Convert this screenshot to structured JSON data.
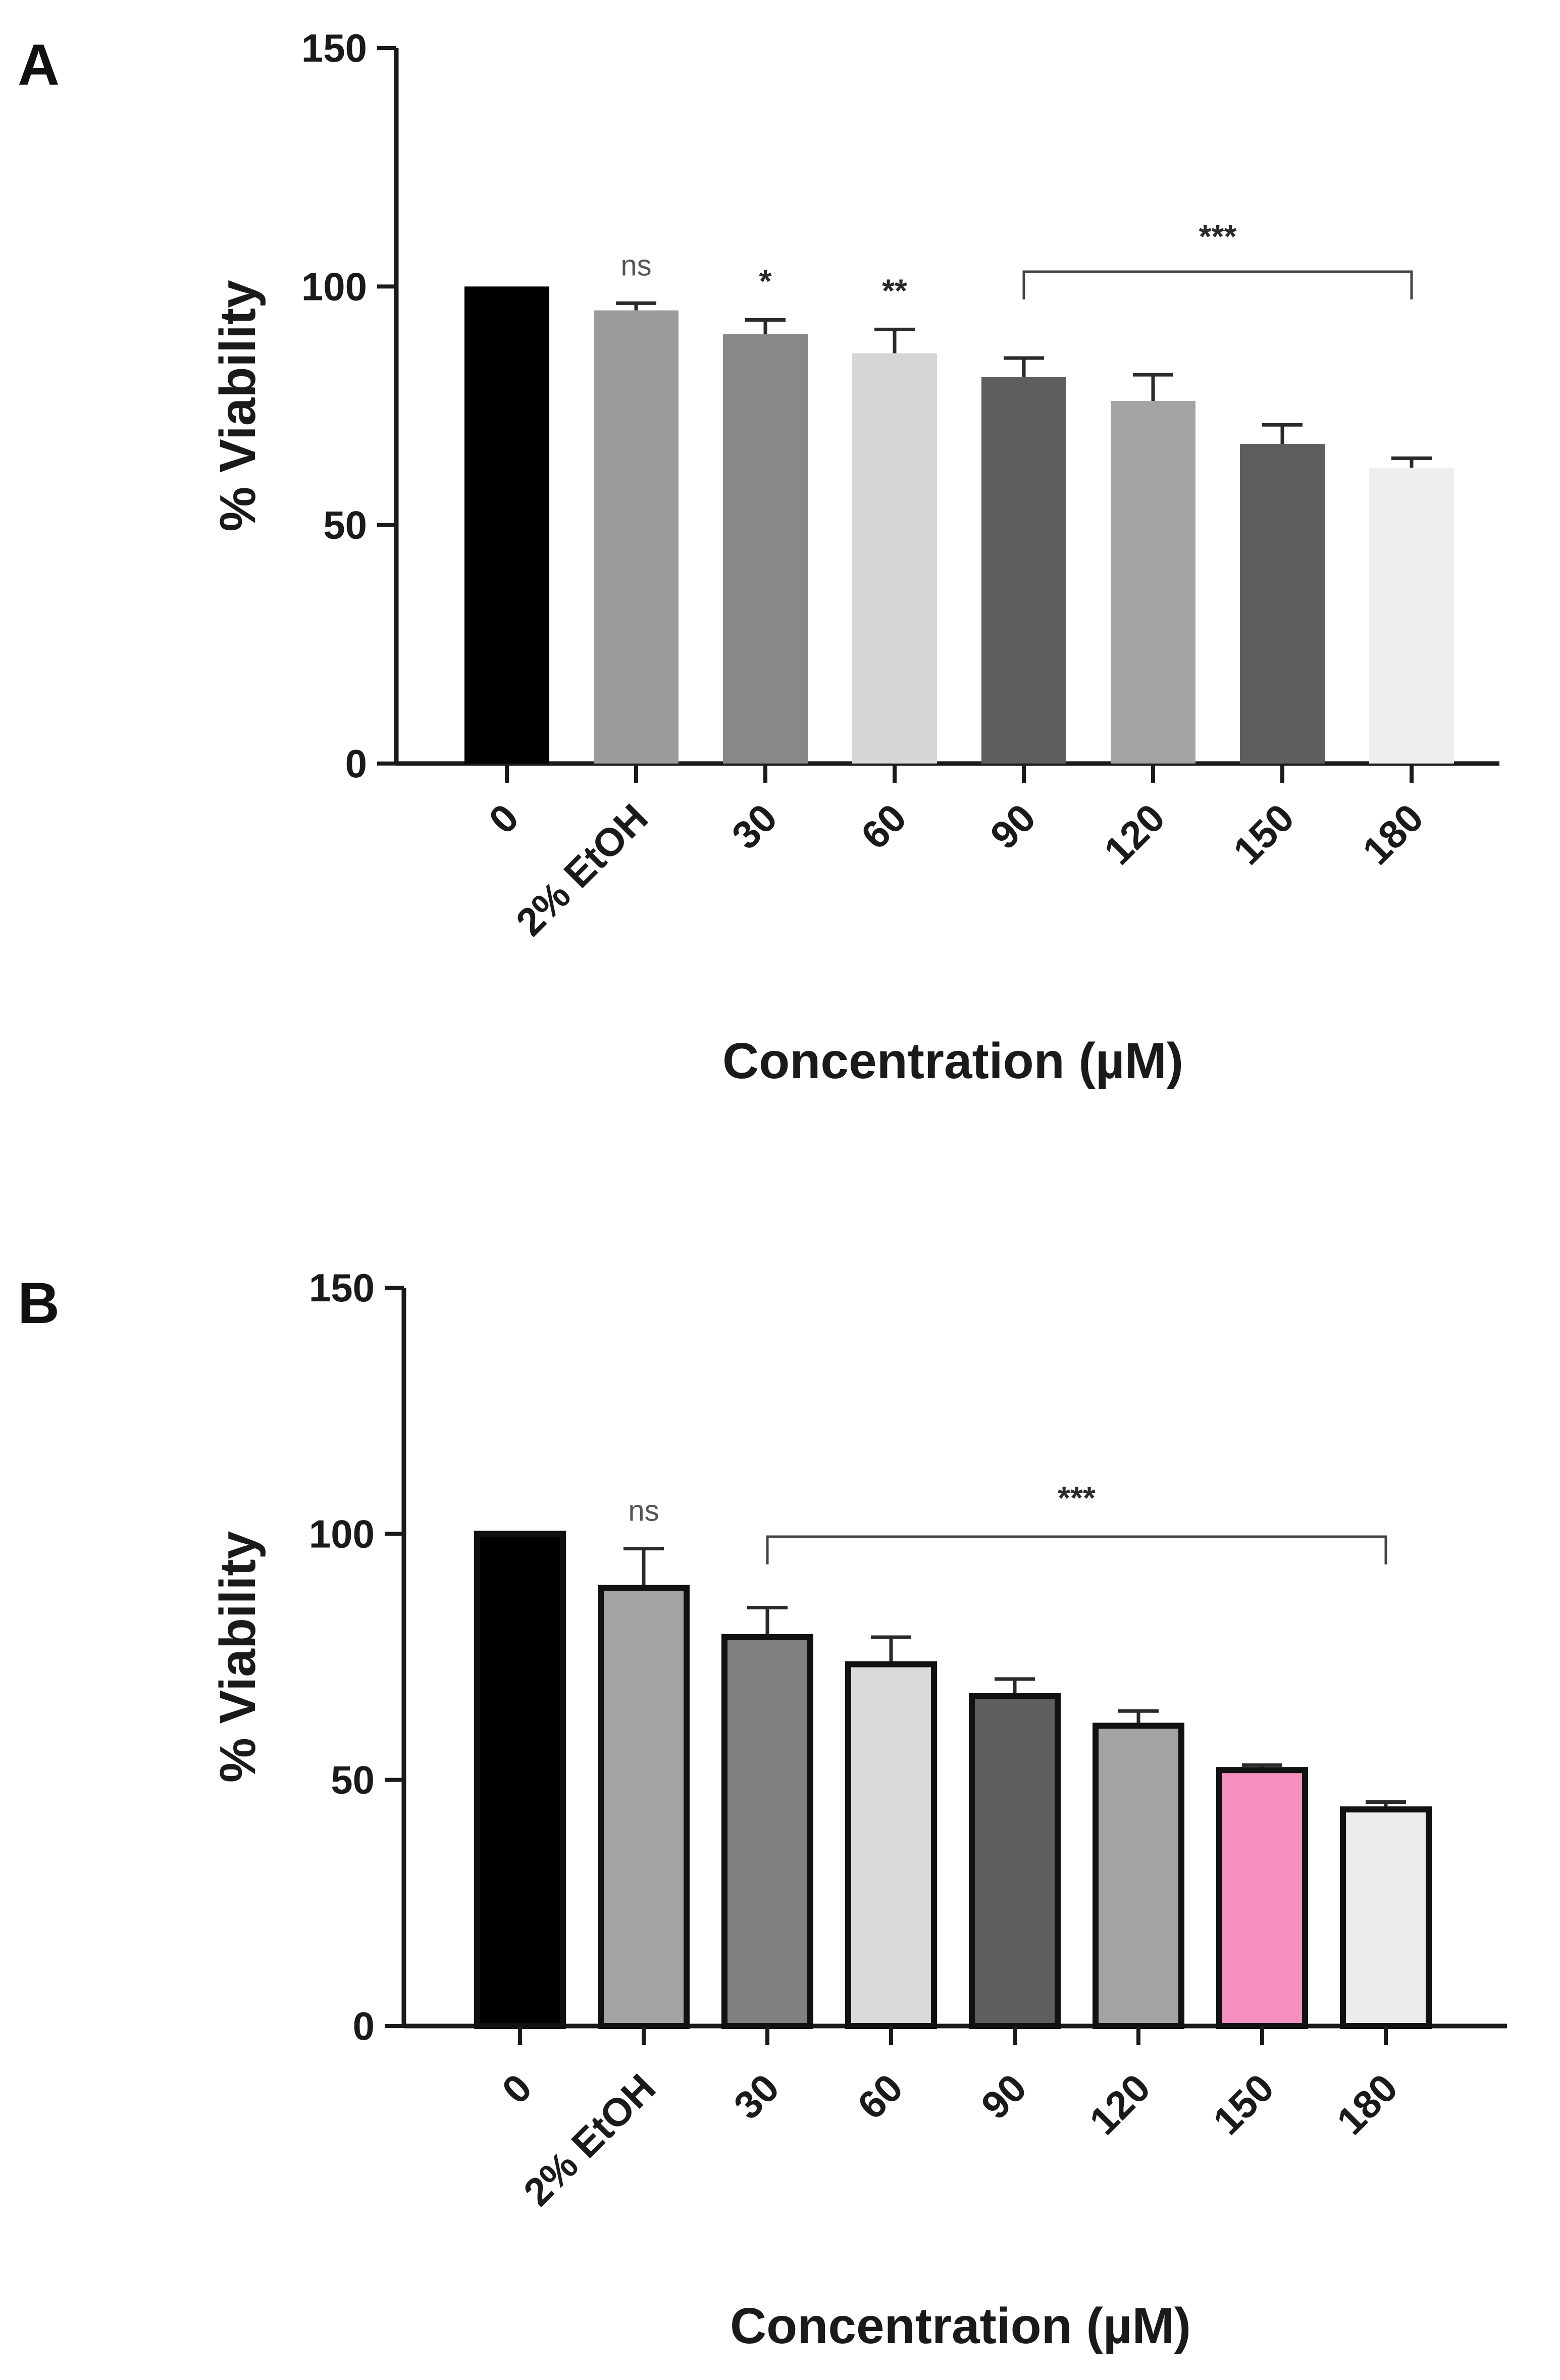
{
  "figure": {
    "panels": [
      "A",
      "B"
    ]
  },
  "chart_data": [
    {
      "panel": "A",
      "type": "bar",
      "title": "",
      "xlabel": "Concentration (µM)",
      "ylabel": "% Viability",
      "ylim": [
        0,
        150
      ],
      "yticks": [
        "0",
        "50",
        "100",
        "150"
      ],
      "categories": [
        "0",
        "2% EtOH",
        "30",
        "60",
        "90",
        "120",
        "150",
        "180"
      ],
      "values": [
        100,
        95,
        90,
        86,
        81,
        76,
        67,
        62
      ],
      "errors": [
        0,
        1.5,
        3,
        5,
        4,
        5.5,
        4,
        2
      ],
      "colors": [
        "#000000",
        "#9c9c9c",
        "#888888",
        "#d6d6d6",
        "#5e5e5e",
        "#a3a3a3",
        "#5e5e5e",
        "#eeeeee"
      ],
      "outlined": false,
      "annotations": [
        {
          "category": "2% EtOH",
          "text": "ns"
        },
        {
          "category": "30",
          "text": "*"
        },
        {
          "category": "60",
          "text": "**"
        }
      ],
      "brackets": [
        {
          "from": "90",
          "to": "180",
          "text": "***"
        }
      ]
    },
    {
      "panel": "B",
      "type": "bar",
      "title": "",
      "xlabel": "Concentration (µM)",
      "ylabel": "% Viability",
      "ylim": [
        0,
        150
      ],
      "yticks": [
        "0",
        "50",
        "100",
        "150"
      ],
      "categories": [
        "0",
        "2% EtOH",
        "30",
        "60",
        "90",
        "120",
        "150",
        "180"
      ],
      "values": [
        100,
        89,
        79,
        73.5,
        67,
        61,
        52,
        44
      ],
      "errors": [
        0,
        8,
        6,
        5.5,
        3.5,
        3,
        1,
        1.5
      ],
      "colors": [
        "#000000",
        "#a3a3a3",
        "#808080",
        "#d9d9d9",
        "#5e5e5e",
        "#a3a3a3",
        "#f48fbf",
        "#ececec"
      ],
      "outlined": true,
      "annotations": [
        {
          "category": "2% EtOH",
          "text": "ns"
        }
      ],
      "brackets": [
        {
          "from": "30",
          "to": "180",
          "text": "***"
        }
      ]
    }
  ]
}
